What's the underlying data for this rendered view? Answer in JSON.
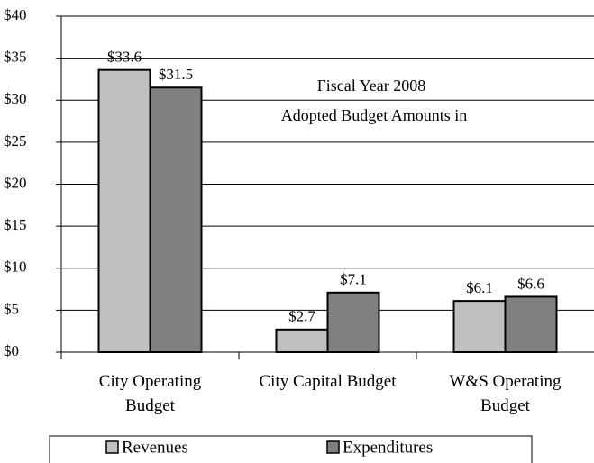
{
  "chart_data": {
    "type": "bar",
    "title": "Fiscal Year 2008",
    "subtitle": "Adopted Budget Amounts in",
    "categories": [
      "City Operating Budget",
      "City Capital Budget",
      "W&S Operating Budget"
    ],
    "series": [
      {
        "name": "Revenues",
        "color": "#c0c0c0",
        "values": [
          33.6,
          2.7,
          6.1
        ],
        "value_labels": [
          "$33.6",
          "$2.7",
          "$6.1"
        ]
      },
      {
        "name": "Expenditures",
        "color": "#808080",
        "values": [
          31.5,
          7.1,
          6.6
        ],
        "value_labels": [
          "$31.5",
          "$7.1",
          "$6.6"
        ]
      }
    ],
    "ylim": [
      0,
      40
    ],
    "yticks": [
      {
        "value": 0,
        "label": "$0"
      },
      {
        "value": 5,
        "label": "$5"
      },
      {
        "value": 10,
        "label": "$10"
      },
      {
        "value": 15,
        "label": "$15"
      },
      {
        "value": 20,
        "label": "$20"
      },
      {
        "value": 25,
        "label": "$25"
      },
      {
        "value": 30,
        "label": "$30"
      },
      {
        "value": 35,
        "label": "$35"
      },
      {
        "value": 40,
        "label": "$40"
      }
    ],
    "grid": true,
    "legend": "bottom"
  }
}
